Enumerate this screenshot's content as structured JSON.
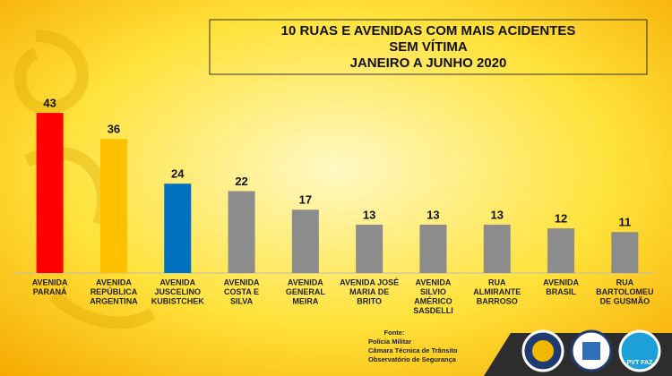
{
  "chart_data": {
    "type": "bar",
    "title": [
      "10 RUAS E AVENIDAS COM MAIS ACIDENTES",
      "SEM VÍTIMA",
      "JANEIRO A JUNHO 2020"
    ],
    "categories": [
      [
        "AVENIDA",
        "PARANÁ"
      ],
      [
        "AVENIDA",
        "REPÚBLICA",
        "ARGENTINA"
      ],
      [
        "AVENIDA",
        "JUSCELINO",
        "KUBISTCHEK"
      ],
      [
        "AVENIDA",
        "COSTA E",
        "SILVA"
      ],
      [
        "AVENIDA",
        "GENERAL",
        "MEIRA"
      ],
      [
        "AVENIDA JOSÉ",
        "MARIA DE",
        "BRITO"
      ],
      [
        "AVENIDA",
        "SILVIO",
        "AMÉRICO",
        "SASDELLI"
      ],
      [
        "RUA",
        "ALMIRANTE",
        "BARROSO"
      ],
      [
        "AVENIDA",
        "BRASIL"
      ],
      [
        "RUA",
        "BARTOLOMEU",
        "DE GUSMÃO"
      ]
    ],
    "values": [
      43,
      36,
      24,
      22,
      17,
      13,
      13,
      13,
      12,
      11
    ],
    "colors": [
      "#ff0000",
      "#ffc000",
      "#0070c0",
      "#8c8c8c",
      "#8c8c8c",
      "#8c8c8c",
      "#8c8c8c",
      "#8c8c8c",
      "#8c8c8c",
      "#8c8c8c"
    ],
    "source": [
      "Fonte:",
      "Polícia Militar",
      "Câmara Técnica de Trânsito",
      "Observatório de Segurança"
    ],
    "logo_text": "PVT FAZ"
  }
}
